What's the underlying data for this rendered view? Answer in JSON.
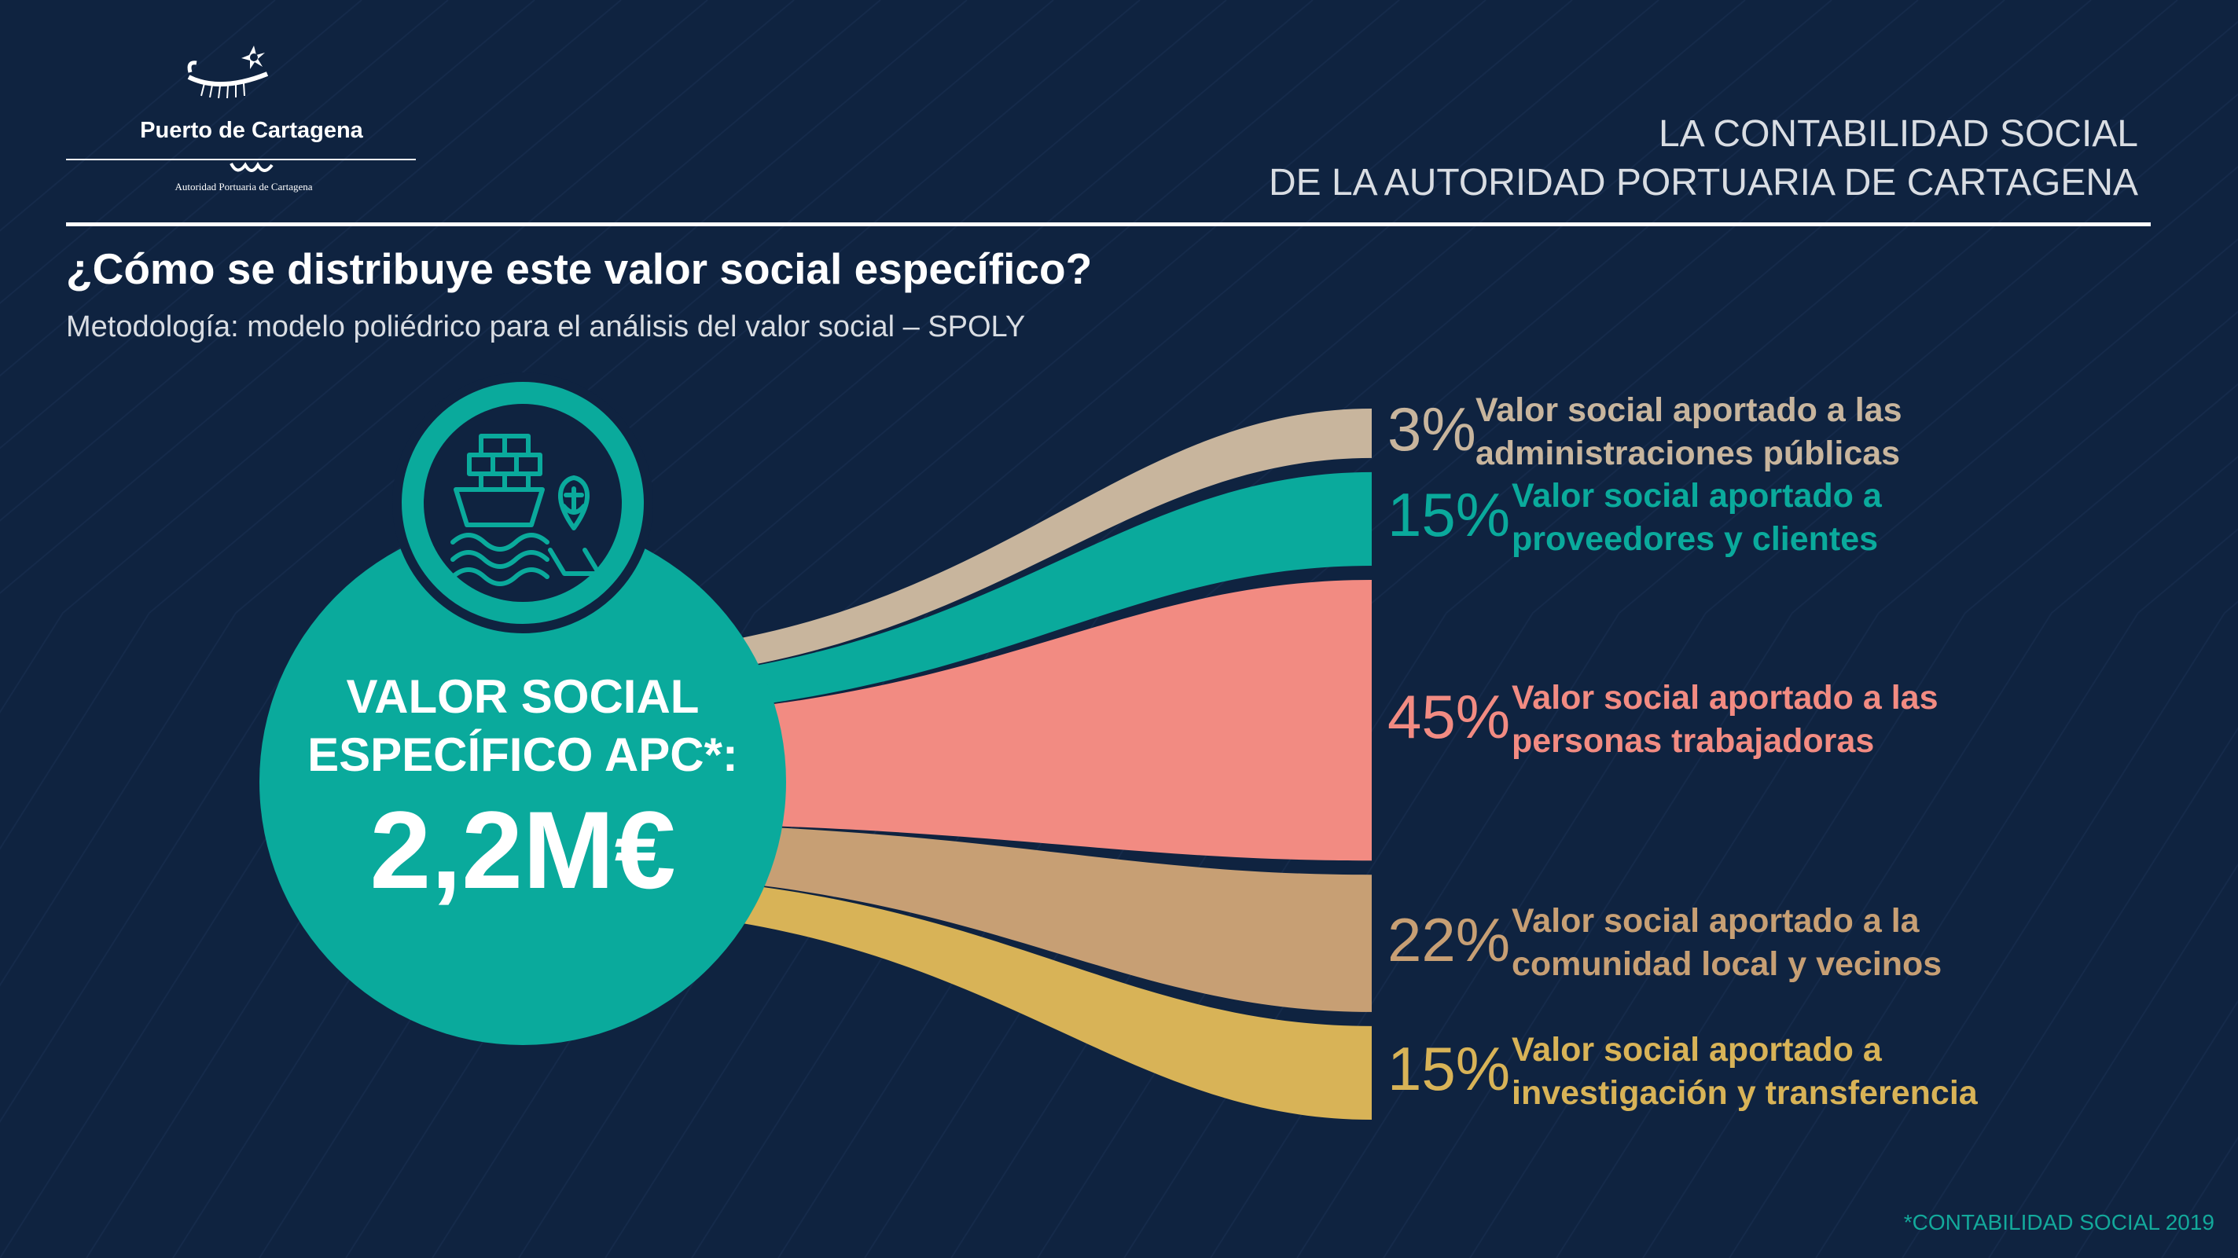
{
  "brand": {
    "name": "Puerto de Cartagena",
    "subtitle": "Autoridad Portuaria de Cartagena"
  },
  "header": {
    "title_line1": "LA CONTABILIDAD SOCIAL",
    "title_line2": "DE LA AUTORIDAD PORTUARIA DE CARTAGENA"
  },
  "question": "¿Cómo se distribuye este valor social específico?",
  "methodology": "Metodología: modelo poliédrico para el análisis del valor social – SPOLY",
  "center": {
    "line1": "VALOR SOCIAL",
    "line2": "ESPECÍFICO APC*:",
    "total": "2,2M€",
    "icon": "ship-anchor-icon"
  },
  "footnote": "*CONTABILIDAD SOCIAL 2019",
  "colors": {
    "background": "#0f2340",
    "teal": "#0aaa9c"
  },
  "chart_data": {
    "type": "bar",
    "total": "2,2M€",
    "categories": [
      "Valor social aportado a las administraciones públicas",
      "Valor social aportado a proveedores y clientes",
      "Valor social aportado a las personas trabajadoras",
      "Valor social aportado a la comunidad local y vecinos",
      "Valor social aportado a investigación y transferencia"
    ],
    "values": [
      3,
      15,
      45,
      22,
      15
    ],
    "value_labels": [
      "3%",
      "15%",
      "45%",
      "22%",
      "15%"
    ],
    "label_line1": [
      "Valor social aportado a las",
      "Valor social aportado a",
      "Valor social aportado a las",
      "Valor social aportado a la",
      "Valor social aportado a"
    ],
    "label_line2": [
      "administraciones públicas",
      "proveedores y clientes",
      "personas trabajadoras",
      "comunidad local y vecinos",
      "investigación y transferencia"
    ],
    "colors": [
      "#c8b59d",
      "#0aaa9c",
      "#f28b82",
      "#c79f74",
      "#d8b357"
    ]
  }
}
